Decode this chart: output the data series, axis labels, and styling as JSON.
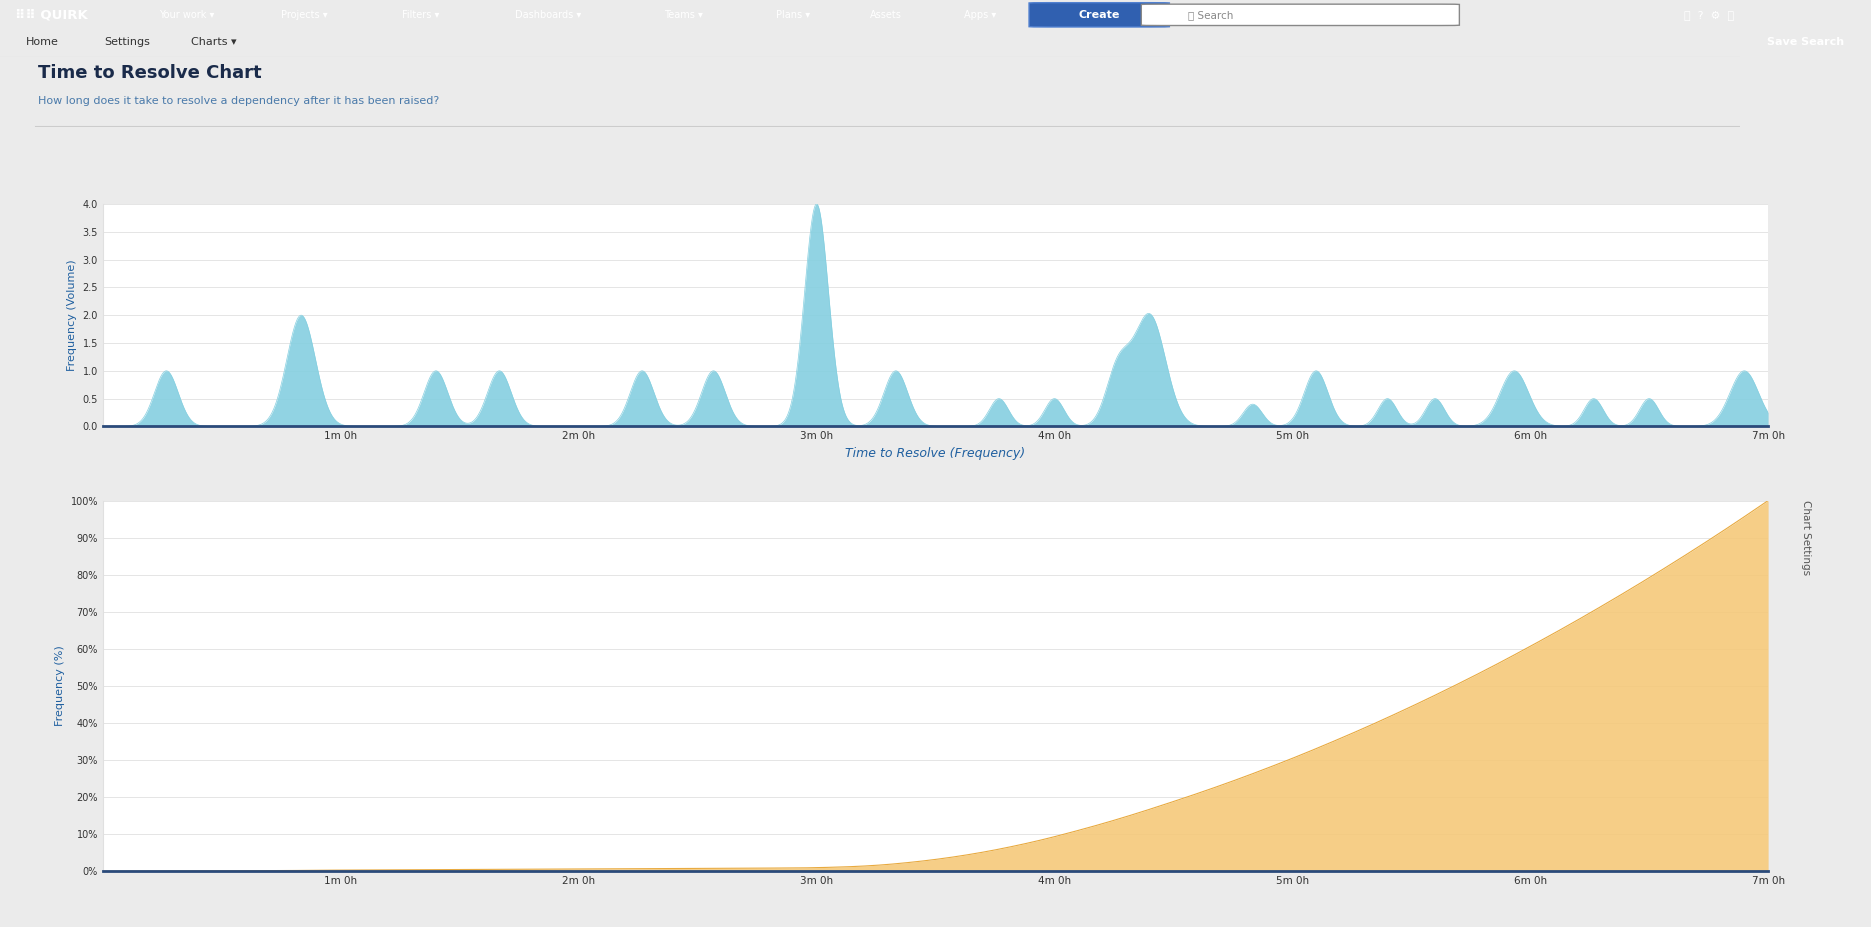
{
  "title": "Time to Resolve Chart",
  "subtitle": "How long does it take to resolve a dependency after it has been raised?",
  "top_xlabel": "Time to Resolve (Frequency)",
  "top_ylabel": "Frequency (Volume)",
  "bottom_ylabel": "Frequency (%)",
  "top_ytick_vals": [
    0.0,
    0.5,
    1.0,
    1.5,
    2.0,
    2.5,
    3.0,
    3.5,
    4.0
  ],
  "top_ytick_labels": [
    "0.0",
    "0.5",
    "1.0",
    "1.5",
    "2.0",
    "2.5",
    "3.0",
    "3.5",
    "4.0"
  ],
  "bottom_ytick_vals": [
    0,
    10,
    20,
    30,
    40,
    50,
    60,
    70,
    80,
    90,
    100
  ],
  "bottom_ytick_labels": [
    "0%",
    "10%",
    "20%",
    "30%",
    "40%",
    "50%",
    "60%",
    "70%",
    "80%",
    "90%",
    "100%"
  ],
  "xtick_labels": [
    "1m 0h",
    "2m 0h",
    "3m 0h",
    "4m 0h",
    "5m 0h",
    "6m 0h",
    "7m 0h"
  ],
  "freq_fill_color": "#85cfe0",
  "freq_line_color": "#5ab4c8",
  "cum_fill_color": "#f5c97a",
  "cum_line_color": "#e8aa40",
  "bg_color": "#ebebeb",
  "chart_bg": "#ffffff",
  "title_color": "#1a2b4a",
  "subtitle_color": "#4a7aaa",
  "axis_label_color": "#2060a0",
  "tick_color": "#333333",
  "header_bg": "#111111",
  "nav_color": "#ffffff",
  "subnav_bg": "#ffffff",
  "sidebar_bg": "#d8d8d8",
  "save_btn_color": "#1565c0",
  "create_btn_color": "#3060b0",
  "divider_color": "#cccccc",
  "bottom_axis_color": "#2a4a7a",
  "grid_color": "#e0e0e0"
}
